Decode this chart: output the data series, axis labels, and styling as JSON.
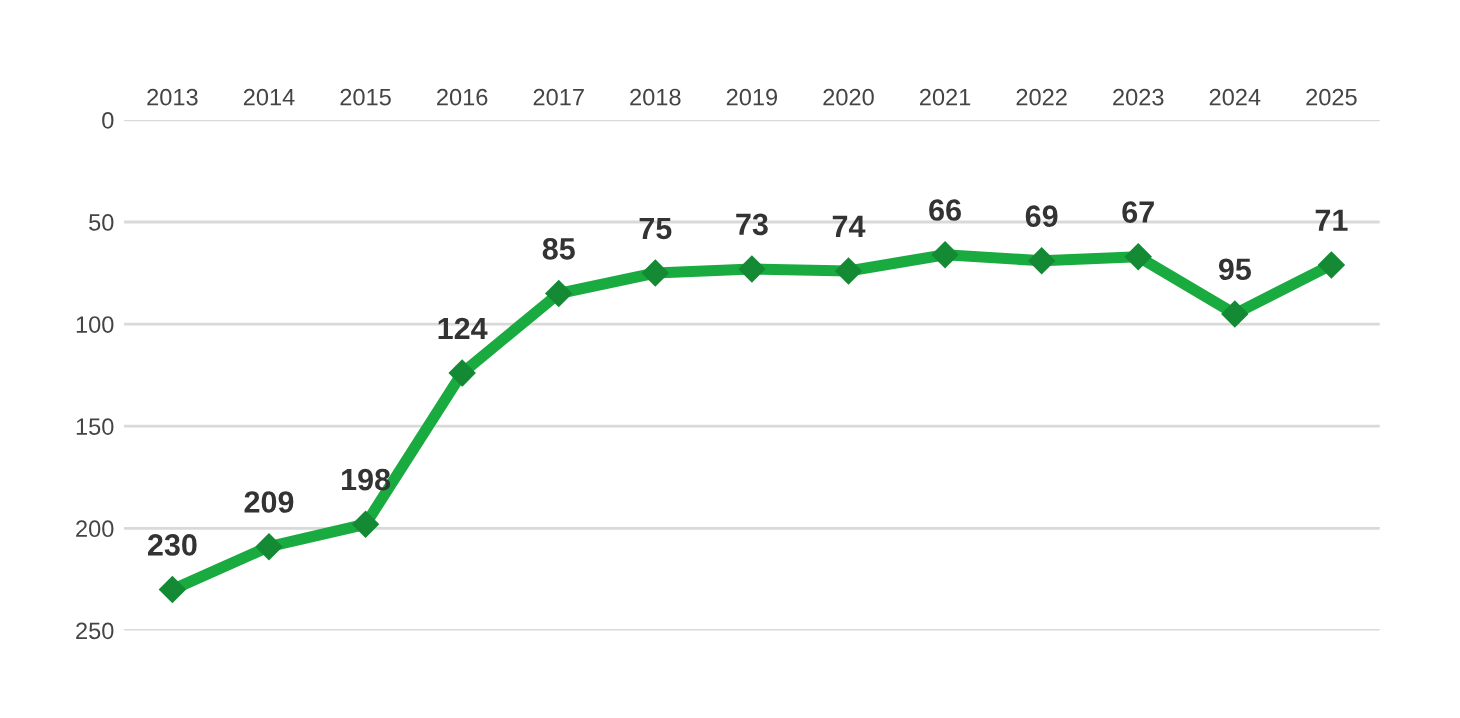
{
  "chart_data": {
    "type": "line",
    "categories": [
      "2013",
      "2014",
      "2015",
      "2016",
      "2017",
      "2018",
      "2019",
      "2020",
      "2021",
      "2022",
      "2023",
      "2024",
      "2025"
    ],
    "series": [
      {
        "color": "#1aab40",
        "values": [
          230,
          209,
          198,
          124,
          85,
          75,
          73,
          74,
          66,
          69,
          67,
          95,
          71
        ]
      }
    ],
    "ylim": [
      250,
      0
    ],
    "yticks": [
      0,
      50,
      100,
      150,
      200,
      250
    ],
    "grid": "y",
    "marker": "diamond",
    "line_style": "solid",
    "data_labels": true,
    "legend": false
  }
}
